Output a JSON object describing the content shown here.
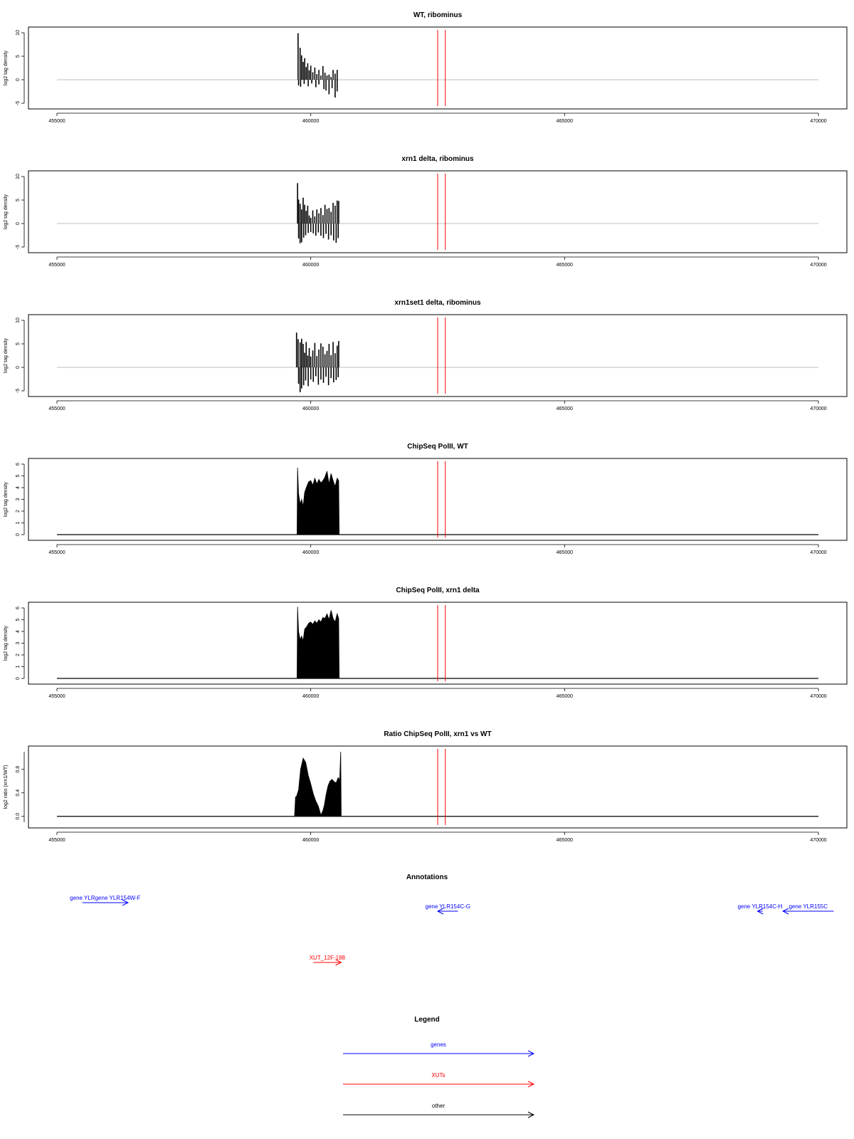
{
  "colors": {
    "gene": "#0000ff",
    "xut": "#ff0000",
    "other": "#000000",
    "zero_line": "#bebebe",
    "marker": "#ff0000"
  },
  "chart_data": [
    {
      "type": "bar",
      "title": "WT, ribominus",
      "ylabel": "log2 tag density",
      "xlim": [
        455000,
        470000
      ],
      "ylim": [
        -5,
        10
      ],
      "xticks": [
        "455000",
        "460000",
        "465000",
        "470000"
      ],
      "yticks": [
        "-5",
        "0",
        "5",
        "10"
      ],
      "markers_x": [
        462500,
        462650
      ],
      "positive": {
        "x": [
          459750,
          459790,
          459820,
          459850,
          459880,
          459910,
          459940,
          459970,
          460000,
          460040,
          460080,
          460120,
          460160,
          460200,
          460240,
          460280,
          460320,
          460360,
          460400,
          460440,
          460480,
          460520
        ],
        "values": [
          9.9,
          6.8,
          5.2,
          3.8,
          4.6,
          2.7,
          3.5,
          2.0,
          3.0,
          1.6,
          2.6,
          1.2,
          2.1,
          0.9,
          2.9,
          1.5,
          0.9,
          1.1,
          0.6,
          2.1,
          1.3,
          2.1
        ]
      },
      "negative": {
        "x": [
          459760,
          459800,
          459870,
          459950,
          460020,
          460100,
          460160,
          460260,
          460300,
          460360,
          460420,
          460480,
          460520
        ],
        "values": [
          -1.2,
          -1.5,
          -0.9,
          -1.4,
          -0.8,
          -1.6,
          -1.0,
          -2.0,
          -2.3,
          -3.1,
          -1.8,
          -3.8,
          -2.5
        ]
      }
    },
    {
      "type": "bar",
      "title": "xrn1 delta, ribominus",
      "ylabel": "log2 tag density",
      "xlim": [
        455000,
        470000
      ],
      "ylim": [
        -5,
        10
      ],
      "xticks": [
        "455000",
        "460000",
        "465000",
        "470000"
      ],
      "yticks": [
        "-5",
        "0",
        "5",
        "10"
      ],
      "markers_x": [
        462500,
        462650
      ],
      "positive": {
        "x": [
          459740,
          459760,
          459790,
          459820,
          459850,
          459880,
          459910,
          459940,
          459970,
          460000,
          460040,
          460080,
          460120,
          460160,
          460200,
          460240,
          460280,
          460320,
          460360,
          460400,
          460440,
          460480,
          460520,
          460550
        ],
        "values": [
          8.6,
          5.1,
          4.2,
          3.0,
          5.5,
          4.0,
          2.7,
          3.8,
          1.7,
          1.2,
          2.8,
          1.5,
          3.0,
          2.2,
          3.3,
          1.8,
          4.0,
          3.1,
          3.3,
          2.5,
          4.4,
          3.8,
          4.9,
          4.8
        ]
      },
      "negative": {
        "x": [
          459760,
          459790,
          459820,
          459860,
          459900,
          459950,
          460000,
          460050,
          460100,
          460150,
          460200,
          460250,
          460300,
          460350,
          460400,
          460450,
          460500,
          460540
        ],
        "values": [
          -3.2,
          -4.2,
          -4.0,
          -3.0,
          -2.5,
          -2.0,
          -1.8,
          -2.1,
          -2.6,
          -1.9,
          -2.6,
          -3.1,
          -2.2,
          -3.4,
          -2.5,
          -3.6,
          -4.1,
          -3.1
        ]
      }
    },
    {
      "type": "bar",
      "title": "xrn1set1 delta, ribominus",
      "ylabel": "log2 tag density",
      "xlim": [
        455000,
        470000
      ],
      "ylim": [
        -5,
        10
      ],
      "xticks": [
        "455000",
        "460000",
        "465000",
        "470000"
      ],
      "yticks": [
        "-5",
        "0",
        "5",
        "10"
      ],
      "markers_x": [
        462500,
        462650
      ],
      "positive": {
        "x": [
          459720,
          459750,
          459790,
          459820,
          459850,
          459880,
          459910,
          459940,
          459970,
          460000,
          460040,
          460080,
          460120,
          460160,
          460200,
          460240,
          460280,
          460320,
          460360,
          460400,
          460440,
          460480,
          460520,
          460550
        ],
        "values": [
          7.4,
          6.0,
          5.3,
          6.1,
          5.0,
          3.1,
          5.4,
          2.5,
          4.1,
          2.3,
          3.6,
          5.2,
          2.4,
          3.8,
          5.1,
          4.4,
          2.8,
          3.5,
          5.0,
          2.6,
          5.4,
          3.0,
          4.6,
          5.6
        ]
      },
      "negative": {
        "x": [
          459760,
          459790,
          459820,
          459860,
          459900,
          459950,
          460000,
          460050,
          460100,
          460150,
          460200,
          460250,
          460300,
          460350,
          460400,
          460450,
          460500,
          460540
        ],
        "values": [
          -3.5,
          -5.3,
          -4.5,
          -3.8,
          -2.8,
          -4.0,
          -2.6,
          -3.1,
          -1.9,
          -3.7,
          -2.6,
          -3.3,
          -2.0,
          -3.8,
          -2.3,
          -3.2,
          -2.7,
          -2.1
        ]
      }
    },
    {
      "type": "area",
      "title": "ChipSeq PolII, WT",
      "ylabel": "log2 tag density",
      "xlim": [
        455000,
        470000
      ],
      "ylim": [
        0,
        6
      ],
      "xticks": [
        "455000",
        "460000",
        "465000",
        "470000"
      ],
      "yticks": [
        "0",
        "1",
        "2",
        "3",
        "4",
        "5",
        "6"
      ],
      "markers_x": [
        462500,
        462650
      ],
      "x": [
        459730,
        459740,
        459760,
        459790,
        459820,
        459850,
        459880,
        459920,
        459960,
        460000,
        460040,
        460080,
        460120,
        460160,
        460200,
        460240,
        460280,
        460320,
        460360,
        460400,
        460440,
        460480,
        460520,
        460550,
        460560
      ],
      "values": [
        0,
        5.7,
        3.5,
        2.6,
        3.0,
        2.4,
        3.6,
        4.1,
        4.5,
        4.6,
        4.2,
        4.8,
        4.3,
        4.7,
        4.4,
        4.6,
        4.9,
        5.4,
        4.3,
        5.2,
        4.6,
        4.1,
        4.8,
        4.6,
        0
      ]
    },
    {
      "type": "area",
      "title": "ChipSeq PolII, xrn1 delta",
      "ylabel": "log2 tag density",
      "xlim": [
        455000,
        470000
      ],
      "ylim": [
        0,
        6
      ],
      "xticks": [
        "455000",
        "460000",
        "465000",
        "470000"
      ],
      "yticks": [
        "0",
        "1",
        "2",
        "3",
        "4",
        "5",
        "6"
      ],
      "markers_x": [
        462500,
        462650
      ],
      "x": [
        459730,
        459740,
        459760,
        459790,
        459820,
        459850,
        459880,
        459920,
        459960,
        460000,
        460040,
        460080,
        460120,
        460160,
        460200,
        460240,
        460280,
        460320,
        460360,
        460400,
        460440,
        460480,
        460520,
        460550,
        460560
      ],
      "values": [
        0,
        6.1,
        4.0,
        3.3,
        3.6,
        3.2,
        4.2,
        4.4,
        4.7,
        4.8,
        4.6,
        4.9,
        4.7,
        5.0,
        4.8,
        5.2,
        5.1,
        5.5,
        5.0,
        5.8,
        5.1,
        4.8,
        5.5,
        5.1,
        0
      ]
    },
    {
      "type": "area",
      "title": "Ratio ChipSeq PolII, xrn1 vs WT",
      "ylabel": "log2 ratio (xrn1/WT)",
      "xlim": [
        455000,
        470000
      ],
      "ylim": [
        -0.1,
        1.1
      ],
      "xticks": [
        "455000",
        "460000",
        "465000",
        "470000"
      ],
      "yticks": [
        "0.0",
        "0.4",
        "0.8"
      ],
      "markers_x": [
        462500,
        462650
      ],
      "x": [
        459680,
        459700,
        459720,
        459760,
        459800,
        459850,
        459900,
        459950,
        460000,
        460050,
        460100,
        460150,
        460200,
        460240,
        460270,
        460300,
        460340,
        460380,
        460420,
        460460,
        460500,
        460540,
        460570,
        460590,
        460600
      ],
      "values": [
        0,
        0.33,
        0.34,
        0.45,
        0.8,
        0.99,
        0.92,
        0.7,
        0.55,
        0.38,
        0.26,
        0.17,
        0.02,
        0.1,
        0.2,
        0.36,
        0.52,
        0.6,
        0.63,
        0.59,
        0.57,
        0.66,
        0.62,
        1.1,
        0
      ]
    }
  ],
  "annotations": {
    "title": "Annotations",
    "genes": [
      {
        "label": "gene YLRgene YLR154W-F",
        "x_start": 455500,
        "x_end": 456400,
        "dir": "right"
      },
      {
        "label": "gene YLR154C-G",
        "x_start": 462900,
        "x_end": 462500,
        "dir": "left"
      },
      {
        "label": "gene YLR154C-H",
        "x_start": 468900,
        "x_end": 468800,
        "dir": "left"
      },
      {
        "label": "gene YLR155C",
        "x_start": 470300,
        "x_end": 469300,
        "dir": "left"
      }
    ],
    "xuts": [
      {
        "label": "XUT_12F-188",
        "x_start": 460050,
        "x_end": 460600,
        "dir": "right"
      }
    ]
  },
  "legend": {
    "title": "Legend",
    "items": [
      {
        "label": "genes",
        "kind": "gene"
      },
      {
        "label": "XUTs",
        "kind": "xut"
      },
      {
        "label": "other",
        "kind": "other"
      }
    ]
  }
}
